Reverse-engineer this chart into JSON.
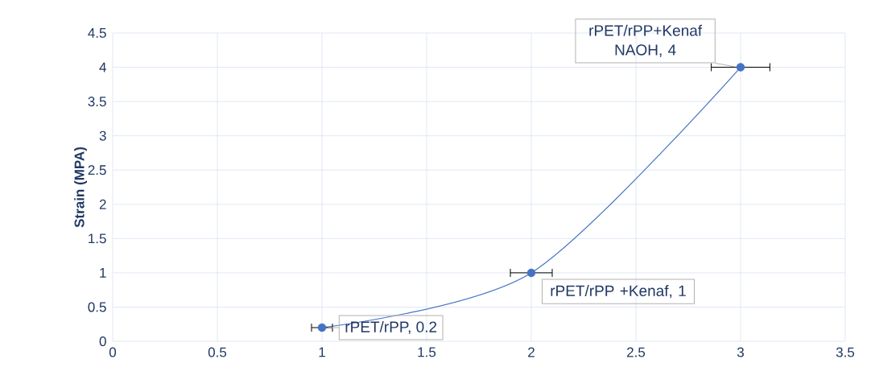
{
  "chart_data": {
    "type": "line",
    "x": [
      1,
      2,
      3
    ],
    "series": [
      {
        "color": "#4472c4",
        "values": [
          0.2,
          1,
          4
        ],
        "xerrors": [
          0.05,
          0.1,
          0.14
        ]
      }
    ],
    "ylabel": "Strain (MPA)",
    "xlim": [
      0,
      3.5
    ],
    "xticks": [
      0,
      0.5,
      1,
      1.5,
      2,
      2.5,
      3,
      3.5
    ],
    "ylim": [
      0,
      4.5
    ],
    "yticks": [
      0,
      0.5,
      1,
      1.5,
      2,
      2.5,
      3,
      3.5,
      4,
      4.5
    ],
    "grid": true,
    "marker": "circle",
    "line_style": "solid",
    "annotations": [
      {
        "text": "rPET/rPP, 0.2",
        "x": 1,
        "y": 0.2
      },
      {
        "text": "rPET/rPP +Kenaf, 1",
        "x": 2,
        "y": 1
      },
      {
        "text": "rPET/rPP+Kenaf NAOH, 4",
        "x": 3,
        "y": 4
      }
    ]
  }
}
